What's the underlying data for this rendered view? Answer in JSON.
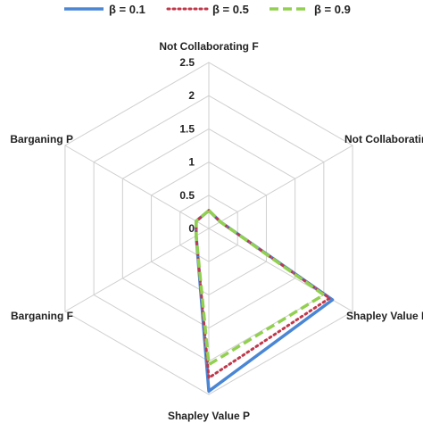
{
  "chart_data": {
    "type": "radar",
    "title": "",
    "axes": [
      "Not  Collaborating F",
      "Not  Collaborating P",
      "Shapley Value F",
      "Shapley Value P",
      "Barganing  F",
      "Barganing  P"
    ],
    "r_ticks": [
      "0",
      "0.5",
      "1",
      "1.5",
      "2",
      "2.5"
    ],
    "r_range": [
      0,
      2.5
    ],
    "grid": true,
    "legend_position": "top",
    "series": [
      {
        "name": "β = 0.1",
        "color": "#4a86d4",
        "dash": "solid",
        "values": [
          0.27,
          0.2,
          2.15,
          2.45,
          0.22,
          0.22
        ]
      },
      {
        "name": "β = 0.5",
        "color": "#c0394b",
        "dash": "dotted",
        "values": [
          0.27,
          0.2,
          2.1,
          2.25,
          0.22,
          0.22
        ]
      },
      {
        "name": "β = 0.9",
        "color": "#92d050",
        "dash": "dashed",
        "values": [
          0.27,
          0.2,
          2.0,
          2.05,
          0.22,
          0.22
        ]
      }
    ]
  }
}
